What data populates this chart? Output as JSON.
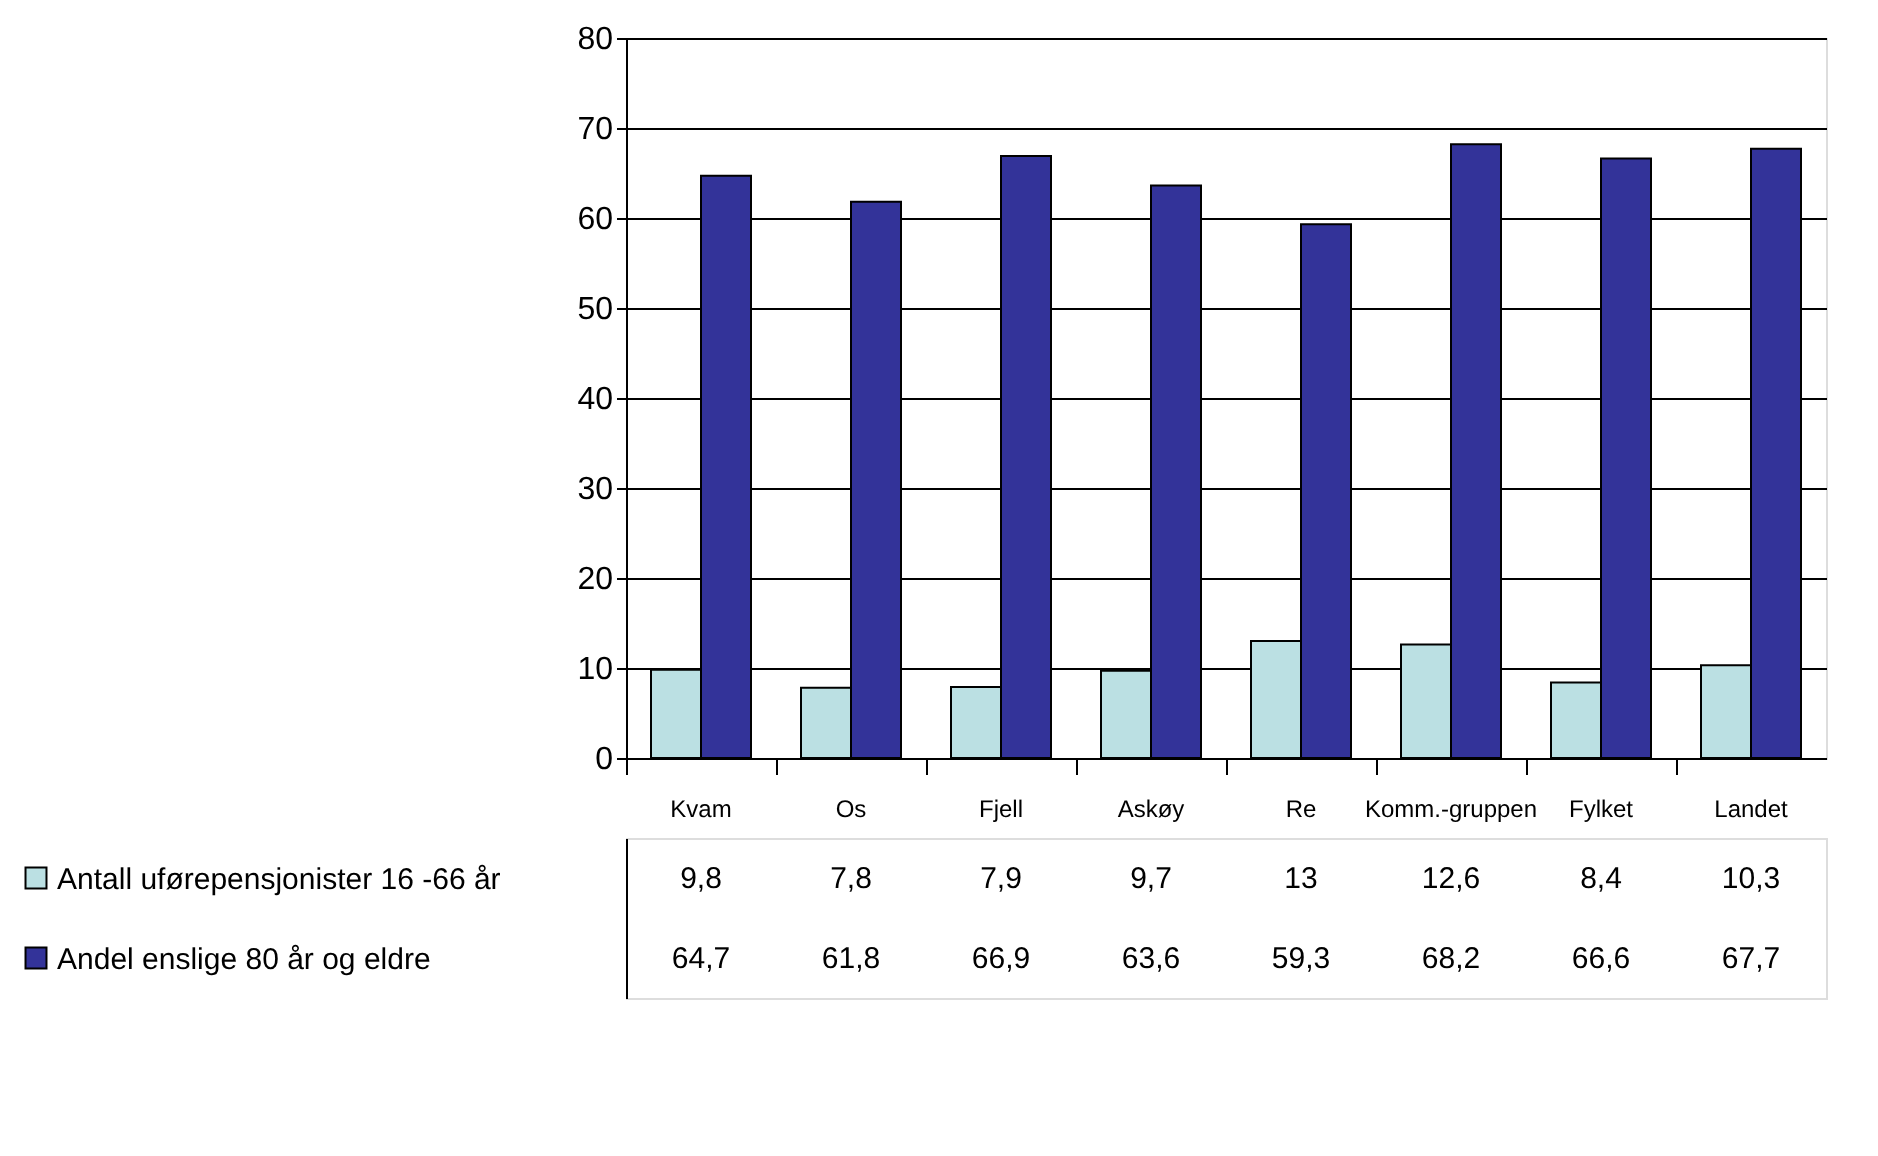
{
  "chart_data": {
    "type": "bar",
    "categories": [
      "Kvam",
      "Os",
      "Fjell",
      "Askøy",
      "Re",
      "Komm.-gruppen",
      "Fylket",
      "Landet"
    ],
    "series": [
      {
        "name": "Antall uførepensjonister 16 -66 år",
        "color": "#bbe0e3",
        "values": [
          9.8,
          7.8,
          7.9,
          9.7,
          13,
          12.6,
          8.4,
          10.3
        ],
        "value_labels": [
          "9,8",
          "7,8",
          "7,9",
          "9,7",
          "13",
          "12,6",
          "8,4",
          "10,3"
        ]
      },
      {
        "name": "Andel enslige 80 år og eldre",
        "color": "#333399",
        "values": [
          64.7,
          61.8,
          66.9,
          63.6,
          59.3,
          68.2,
          66.6,
          67.7
        ],
        "value_labels": [
          "64,7",
          "61,8",
          "66,9",
          "63,6",
          "59,3",
          "68,2",
          "66,6",
          "67,7"
        ]
      }
    ],
    "ylim": [
      0,
      80
    ],
    "yticks": [
      0,
      10,
      20,
      30,
      40,
      50,
      60,
      70,
      80
    ],
    "grid": "y",
    "legend": "bottom left"
  }
}
